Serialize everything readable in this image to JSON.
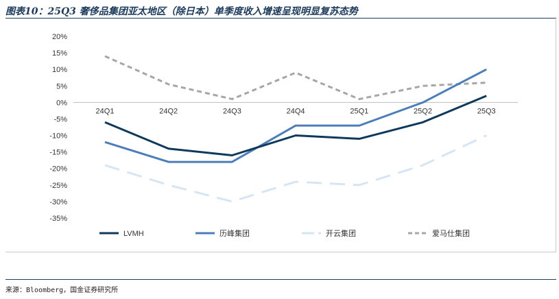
{
  "header": {
    "title": "图表10：25Q3 奢侈品集团亚太地区（除日本）单季度收入增速呈现明显复苏态势"
  },
  "footer": {
    "source": "来源：Bloomberg，国金证券研究所"
  },
  "chart_data": {
    "type": "line",
    "categories": [
      "24Q1",
      "24Q2",
      "24Q3",
      "24Q4",
      "25Q1",
      "25Q2",
      "25Q3"
    ],
    "y_ticks": [
      "20%",
      "15%",
      "10%",
      "5%",
      "0%",
      "-5%",
      "-10%",
      "-15%",
      "-20%",
      "-25%",
      "-30%",
      "-35%"
    ],
    "ylim": [
      -35,
      20
    ],
    "y_unit": "%",
    "grid": false,
    "legend_position": "bottom",
    "series": [
      {
        "name": "LVMH",
        "values": [
          -6,
          -14,
          -16,
          -10,
          -11,
          -6,
          2
        ],
        "color": "#0d3a5c",
        "style": "solid"
      },
      {
        "name": "历峰集团",
        "values": [
          -12,
          -18,
          -18,
          -7,
          -7,
          0,
          10
        ],
        "color": "#4a7ebb",
        "style": "solid"
      },
      {
        "name": "开云集团",
        "values": [
          -19,
          -25,
          -30,
          -24,
          -25,
          -19,
          -10
        ],
        "color": "#d5e5f3",
        "style": "long-dash"
      },
      {
        "name": "爱马仕集团",
        "values": [
          14,
          5.5,
          1,
          9,
          1,
          5,
          6
        ],
        "color": "#a6a6a6",
        "style": "dash"
      }
    ]
  }
}
